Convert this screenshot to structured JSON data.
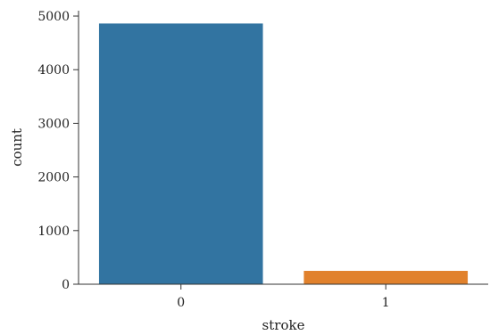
{
  "chart_data": {
    "type": "bar",
    "categories": [
      "0",
      "1"
    ],
    "values": [
      4861,
      249
    ],
    "colors": [
      "#3274a1",
      "#e1812c"
    ],
    "xlabel": "stroke",
    "ylabel": "count",
    "ylim": [
      0,
      5100
    ],
    "yticks": [
      0,
      1000,
      2000,
      3000,
      4000,
      5000
    ],
    "grid": false,
    "legend": "none"
  }
}
